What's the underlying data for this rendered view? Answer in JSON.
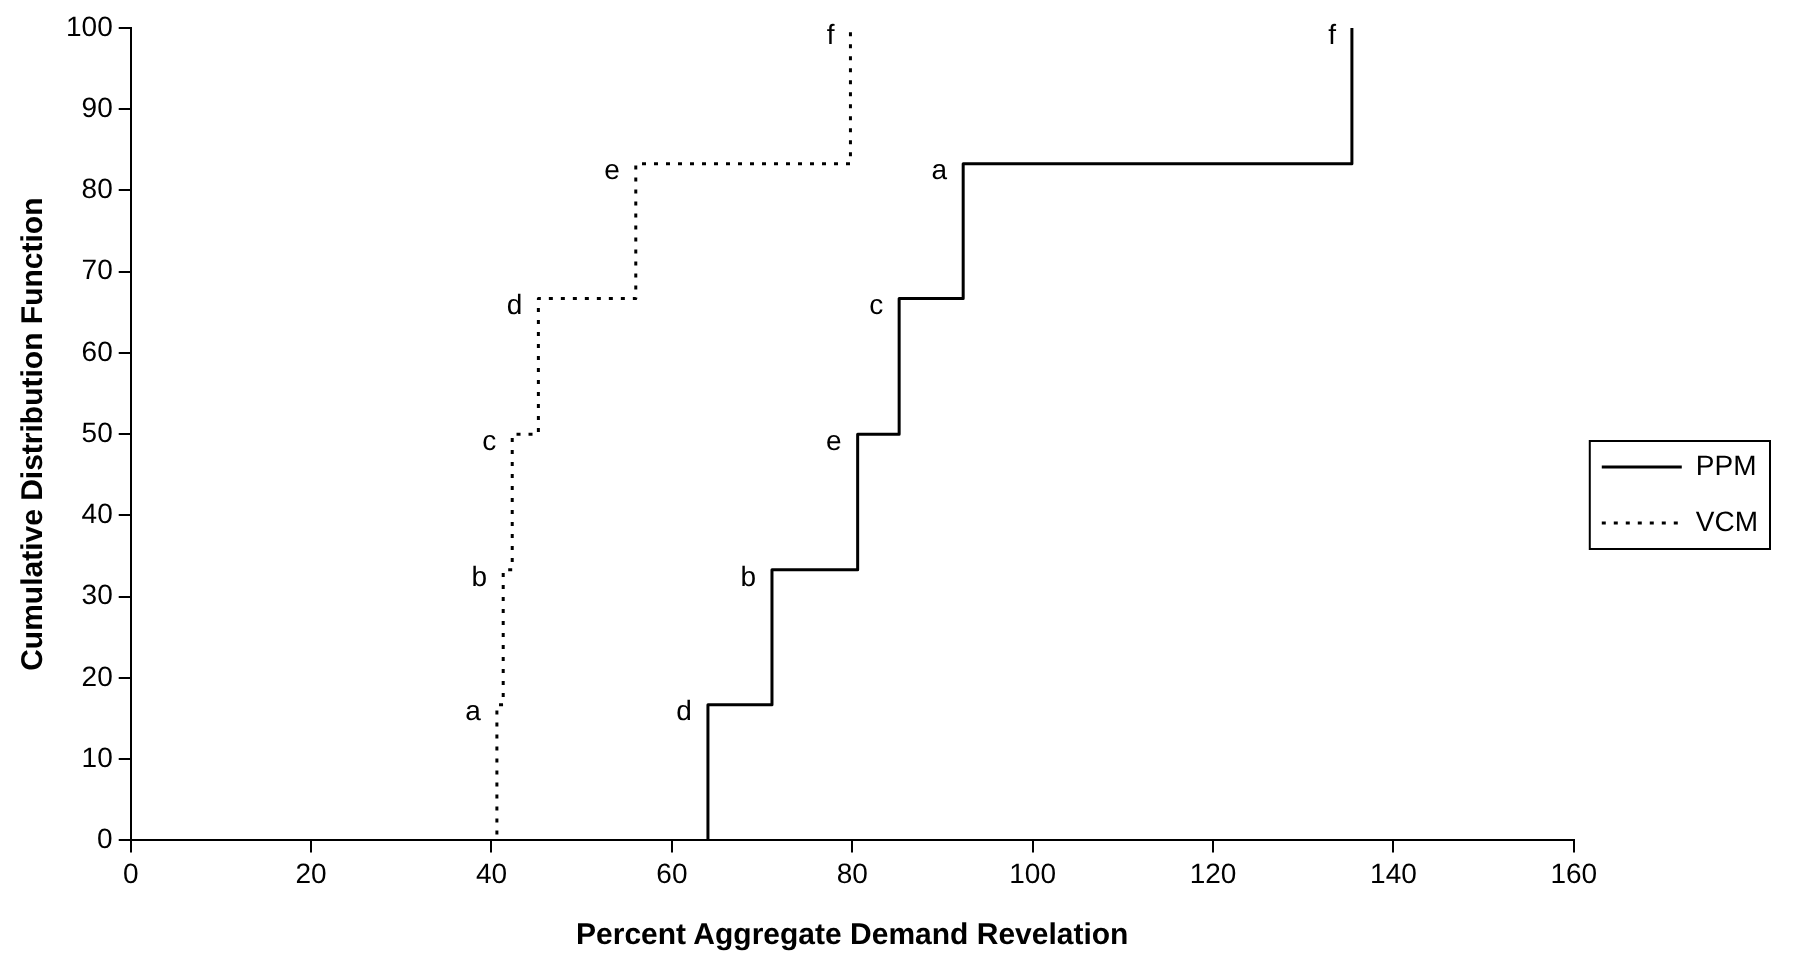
{
  "chart_data": {
    "type": "step",
    "xlabel": "Percent Aggregate Demand Revelation",
    "ylabel": "Cumulative Distribution Function",
    "series": [
      {
        "name": "PPM",
        "color": "#000000",
        "line_style": "solid",
        "x": [
          0,
          64,
          71.1,
          80.6,
          85.2,
          92.3,
          135.4
        ],
        "values": [
          0,
          16.7,
          33.3,
          50,
          66.7,
          83.3,
          100
        ]
      },
      {
        "name": "VCM",
        "color": "#000000",
        "line_style": "dotted",
        "x": [
          0,
          40.6,
          41.3,
          42.3,
          45.2,
          56,
          79.8
        ],
        "values": [
          0,
          16.7,
          33.3,
          50,
          66.7,
          83.3,
          100
        ]
      }
    ],
    "annotations": [
      {
        "text": "d",
        "x": 64,
        "y": 16.7
      },
      {
        "text": "b",
        "x": 71.1,
        "y": 33.3
      },
      {
        "text": "e",
        "x": 80.6,
        "y": 50
      },
      {
        "text": "c",
        "x": 85.2,
        "y": 66.7
      },
      {
        "text": "a",
        "x": 92.3,
        "y": 83.3
      },
      {
        "text": "f",
        "x": 135.4,
        "y": 100
      },
      {
        "text": "a",
        "x": 40.6,
        "y": 16.7
      },
      {
        "text": "b",
        "x": 41.3,
        "y": 33.3
      },
      {
        "text": "c",
        "x": 42.3,
        "y": 50
      },
      {
        "text": "d",
        "x": 45.2,
        "y": 66.7
      },
      {
        "text": "e",
        "x": 56,
        "y": 83.3
      },
      {
        "text": "f",
        "x": 79.8,
        "y": 100
      }
    ],
    "xlim": [
      0,
      160
    ],
    "xticks": [
      0,
      20,
      40,
      60,
      80,
      100,
      120,
      140,
      160
    ],
    "ylim": [
      0,
      100
    ],
    "yticks": [
      0,
      10,
      20,
      30,
      40,
      50,
      60,
      70,
      80,
      90,
      100
    ],
    "grid": false,
    "legend": "right",
    "marker": "none"
  }
}
